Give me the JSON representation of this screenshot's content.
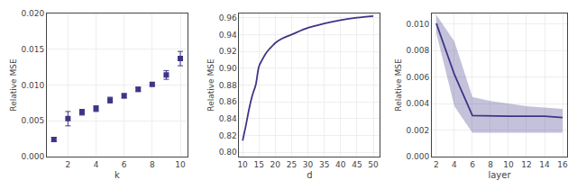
{
  "chart_data": [
    {
      "type": "scatter",
      "xlabel": "k",
      "ylabel": "Relative MSE",
      "x": [
        1,
        2,
        3,
        4,
        5,
        6,
        7,
        8,
        9,
        10
      ],
      "values": [
        0.0024,
        0.0053,
        0.0062,
        0.0067,
        0.0079,
        0.0085,
        0.0094,
        0.0101,
        0.0114,
        0.0137
      ],
      "yerr": [
        0.0003,
        0.001,
        0.0004,
        0.0004,
        0.0004,
        0.0003,
        0.0003,
        0.0002,
        0.0006,
        0.001
      ],
      "xlim": [
        0.5,
        10.5
      ],
      "ylim": [
        0,
        0.02
      ],
      "xticks": [
        2,
        4,
        6,
        8,
        10
      ],
      "yticks": [
        {
          "value": 0,
          "label": "0.000"
        },
        0.005,
        {
          "value": 0.01,
          "label": "0.010"
        },
        0.015,
        {
          "value": 0.02,
          "label": "0.020"
        }
      ],
      "color": "#3d3585",
      "marker": "square",
      "grid": true
    },
    {
      "type": "line",
      "xlabel": "d",
      "ylabel": "Relative MSE",
      "x": [
        10,
        11,
        12,
        13,
        14,
        15,
        16,
        17,
        18,
        19,
        20,
        22,
        25,
        30,
        35,
        40,
        45,
        50
      ],
      "values": [
        0.814,
        0.832,
        0.852,
        0.868,
        0.88,
        0.902,
        0.91,
        0.917,
        0.922,
        0.926,
        0.93,
        0.935,
        0.94,
        0.948,
        0.953,
        0.957,
        0.96,
        0.962
      ],
      "xlim": [
        9,
        52
      ],
      "ylim": [
        0.795,
        0.965
      ],
      "xticks": [
        10,
        15,
        20,
        25,
        30,
        35,
        40,
        45,
        50
      ],
      "yticks": [
        {
          "value": 0.8,
          "label": "0.80"
        },
        0.82,
        0.84,
        0.86,
        0.88,
        {
          "value": 0.9,
          "label": "0.90"
        },
        0.92,
        0.94,
        0.96
      ],
      "color": "#3d3585",
      "line_style": "smooth",
      "grid": true
    },
    {
      "type": "line",
      "xlabel": "layer",
      "ylabel": "Relative MSE",
      "x": [
        2,
        4,
        6,
        8,
        10,
        12,
        14,
        16
      ],
      "values": [
        0.01005,
        0.0062,
        0.0031,
        0.00305,
        0.00305,
        0.00305,
        0.00305,
        0.00295
      ],
      "upper": [
        0.0107,
        0.0087,
        0.0045,
        0.0042,
        0.004,
        0.0038,
        0.0037,
        0.0036
      ],
      "lower": [
        0.0093,
        0.0038,
        0.0018,
        0.0018,
        0.0018,
        0.0018,
        0.0018,
        0.0018
      ],
      "xlim": [
        1.5,
        16.5
      ],
      "ylim": [
        0,
        0.0108
      ],
      "xticks": [
        2,
        4,
        6,
        8,
        10,
        12,
        14,
        16
      ],
      "yticks": [
        {
          "value": 0,
          "label": "0.000"
        },
        0.002,
        0.004,
        0.006,
        0.008,
        {
          "value": 0.01,
          "label": "0.010"
        }
      ],
      "color": "#3d3585",
      "grid": true
    }
  ]
}
